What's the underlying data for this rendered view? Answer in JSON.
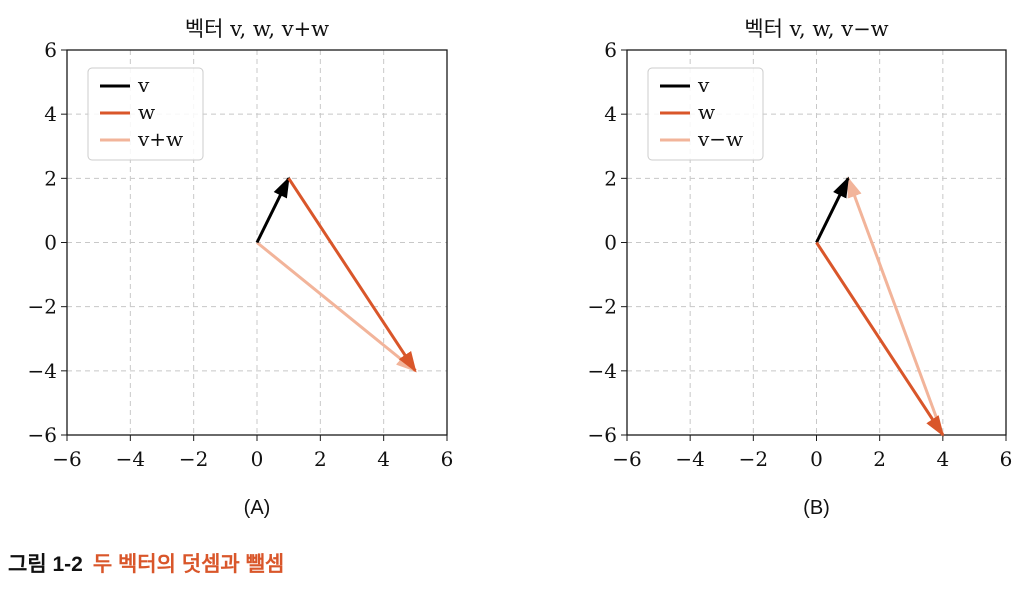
{
  "chart_data": [
    {
      "type": "line",
      "title": "벡터 v, w, v+w",
      "panel_label": "(A)",
      "xlim": [
        -6,
        6
      ],
      "ylim": [
        -6,
        6
      ],
      "xticks": [
        "−6",
        "−4",
        "−2",
        "0",
        "2",
        "4",
        "6"
      ],
      "yticks": [
        "6",
        "4",
        "2",
        "0",
        "−2",
        "−4",
        "−6"
      ],
      "grid": true,
      "legend_position": "top-left",
      "series": [
        {
          "name": "v",
          "color": "#000000",
          "start": [
            0,
            0
          ],
          "end": [
            1,
            2
          ]
        },
        {
          "name": "w",
          "color": "#d9562a",
          "start": [
            1,
            2
          ],
          "end": [
            5,
            -4
          ]
        },
        {
          "name": "v+w",
          "color": "#f2b49a",
          "start": [
            0,
            0
          ],
          "end": [
            5,
            -4
          ]
        }
      ]
    },
    {
      "type": "line",
      "title": "벡터 v, w, v−w",
      "panel_label": "(B)",
      "xlim": [
        -6,
        6
      ],
      "ylim": [
        -6,
        6
      ],
      "xticks": [
        "−6",
        "−4",
        "−2",
        "0",
        "2",
        "4",
        "6"
      ],
      "yticks": [
        "6",
        "4",
        "2",
        "0",
        "−2",
        "−4",
        "−6"
      ],
      "grid": true,
      "legend_position": "top-left",
      "series": [
        {
          "name": "v",
          "color": "#000000",
          "start": [
            0,
            0
          ],
          "end": [
            1,
            2
          ]
        },
        {
          "name": "w",
          "color": "#d9562a",
          "start": [
            0,
            0
          ],
          "end": [
            4,
            -6
          ]
        },
        {
          "name": "v−w",
          "color": "#f2b49a",
          "start": [
            4,
            -6
          ],
          "end": [
            1,
            2
          ]
        }
      ]
    }
  ],
  "caption": {
    "number": "그림 1-2",
    "text": "두 벡터의 덧셈과 뺄셈"
  }
}
